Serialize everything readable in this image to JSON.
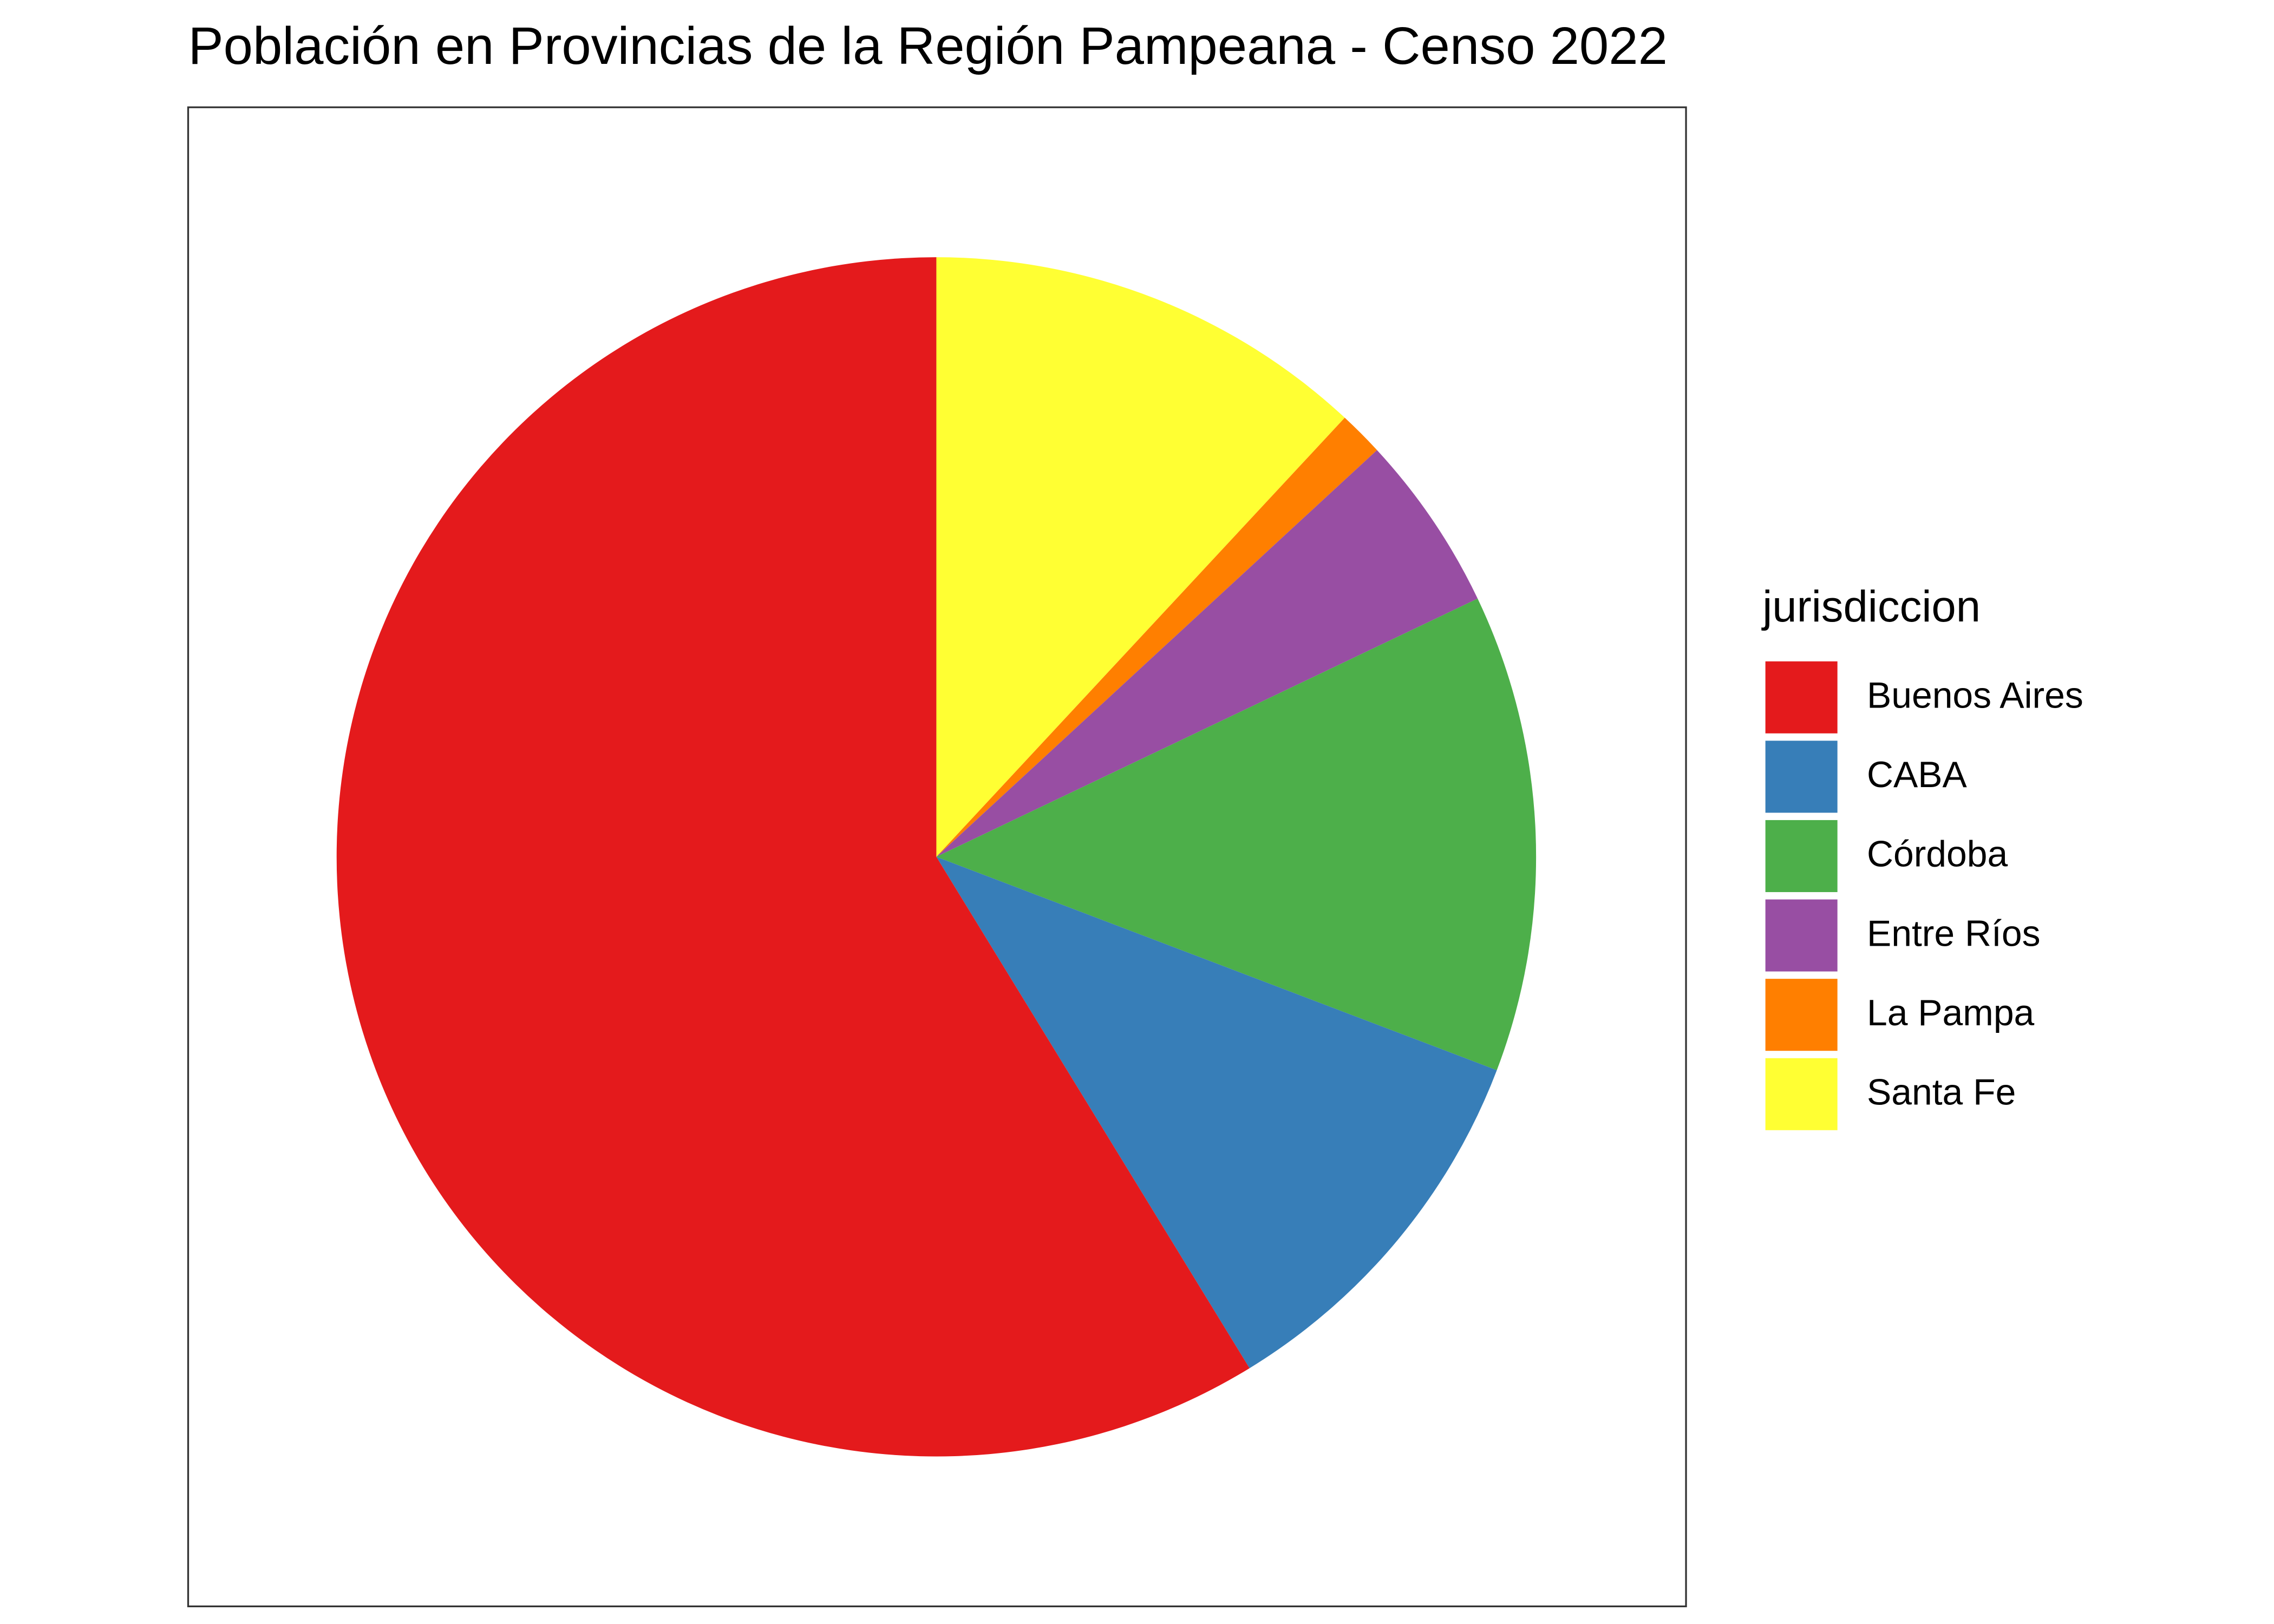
{
  "chart_data": {
    "type": "pie",
    "title": "Población en Provincias de la Región Pampeana - Censo 2022",
    "legend_title": "jurisdiccion",
    "categories": [
      "Buenos Aires",
      "CABA",
      "Córdoba",
      "Entre Ríos",
      "La Pampa",
      "Santa Fe"
    ],
    "values": [
      17523996,
      3121707,
      3840905,
      1425578,
      361859,
      3556522
    ],
    "colors": [
      "#e41a1c",
      "#377eb8",
      "#4daf4a",
      "#984ea3",
      "#ff7f00",
      "#ffff33"
    ],
    "legend": "right"
  }
}
